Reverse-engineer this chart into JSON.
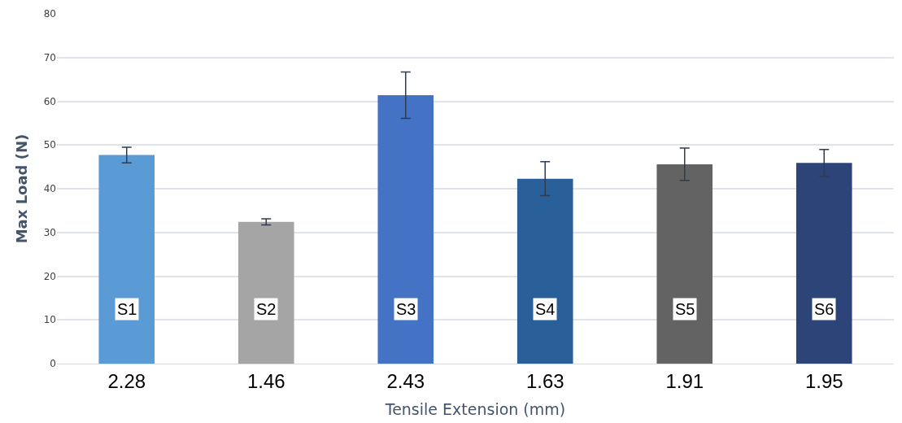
{
  "chart_data": {
    "type": "bar",
    "xlabel": "Tensile Extension (mm)",
    "ylabel": "Max Load (N)",
    "categories": [
      "2.28",
      "1.46",
      "2.43",
      "1.63",
      "1.91",
      "1.95"
    ],
    "values": [
      47.7,
      32.4,
      61.4,
      42.3,
      45.6,
      45.9
    ],
    "errors": [
      1.8,
      0.7,
      5.3,
      3.9,
      3.7,
      3.1
    ],
    "colors": [
      "#5b9bd5",
      "#a5a5a5",
      "#4472c4",
      "#2a6099",
      "#636363",
      "#2c4478"
    ],
    "ylim": [
      0,
      80
    ],
    "yticks": [
      0,
      10,
      20,
      30,
      40,
      50,
      60,
      70,
      80
    ],
    "grid": "y",
    "annotations": [
      {
        "text": "S1",
        "x": "2.28",
        "y": 12.5
      },
      {
        "text": "S2",
        "x": "1.46",
        "y": 12.5
      },
      {
        "text": "S3",
        "x": "2.43",
        "y": 12.5
      },
      {
        "text": "S4",
        "x": "1.63",
        "y": 12.5
      },
      {
        "text": "S5",
        "x": "1.91",
        "y": 12.5
      },
      {
        "text": "S6",
        "x": "1.95",
        "y": 12.5
      }
    ]
  }
}
